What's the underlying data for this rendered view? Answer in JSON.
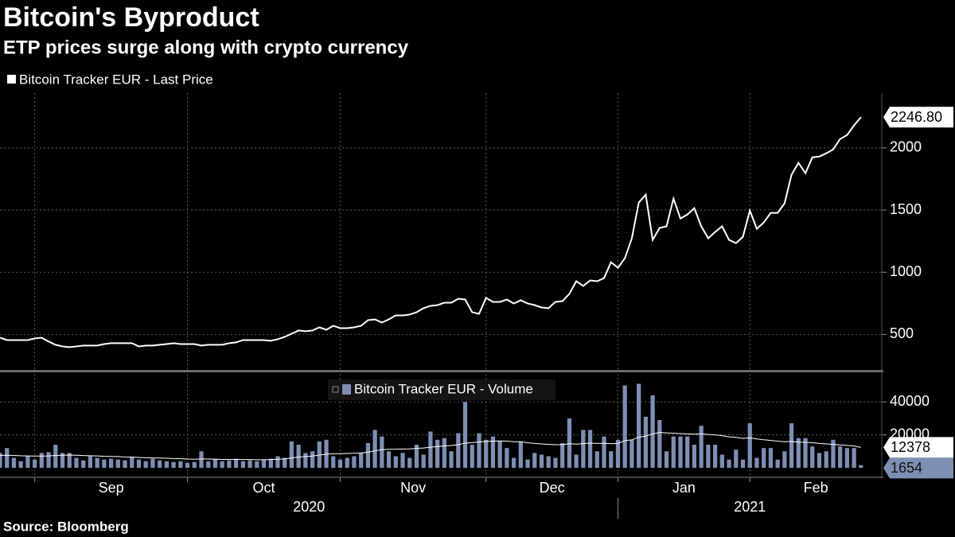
{
  "source": "Source: Bloomberg",
  "chart_data": [
    {
      "type": "line",
      "title": "Bitcoin's Byproduct",
      "subtitle": "ETP prices surge along with crypto currency",
      "series": [
        {
          "name": "Bitcoin Tracker EUR - Last Price",
          "color": "#ffffff",
          "values": [
            474,
            455,
            455,
            455,
            455,
            468,
            474,
            443,
            417,
            404,
            398,
            404,
            411,
            411,
            411,
            423,
            430,
            430,
            430,
            430,
            404,
            411,
            411,
            417,
            423,
            430,
            423,
            423,
            423,
            411,
            417,
            417,
            417,
            430,
            436,
            455,
            455,
            455,
            455,
            449,
            462,
            481,
            506,
            532,
            526,
            532,
            557,
            538,
            570,
            551,
            551,
            557,
            570,
            615,
            621,
            596,
            621,
            653,
            653,
            660,
            679,
            711,
            730,
            736,
            755,
            755,
            787,
            781,
            679,
            666,
            794,
            762,
            762,
            781,
            749,
            775,
            749,
            736,
            717,
            711,
            762,
            768,
            826,
            928,
            890,
            934,
            928,
            953,
            1081,
            1036,
            1113,
            1273,
            1560,
            1624,
            1260,
            1356,
            1369,
            1592,
            1432,
            1464,
            1515,
            1369,
            1273,
            1324,
            1369,
            1260,
            1234,
            1285,
            1496,
            1349,
            1400,
            1477,
            1477,
            1554,
            1784,
            1879,
            1796,
            1924,
            1930,
            1956,
            1988,
            2071,
            2103,
            2180,
            2246.8
          ],
          "last_label": "2246.80"
        }
      ],
      "ylim": [
        215,
        2440
      ],
      "yticks": [
        500,
        1000,
        1500,
        2000
      ],
      "grid": true
    },
    {
      "type": "bar",
      "series": [
        {
          "name": "Bitcoin Tracker EUR - Volume",
          "type": "bar",
          "color": "#7d8fb3",
          "values": [
            9000,
            12000,
            6000,
            4000,
            7000,
            5000,
            9000,
            9500,
            14000,
            9000,
            9000,
            6000,
            4500,
            7000,
            6000,
            5000,
            5500,
            5000,
            4500,
            6500,
            5000,
            4000,
            5500,
            4500,
            4000,
            3500,
            4000,
            3000,
            3500,
            10000,
            4000,
            5500,
            4000,
            4500,
            5500,
            4000,
            4500,
            4000,
            5000,
            5500,
            7000,
            6000,
            16000,
            14000,
            9000,
            10000,
            16000,
            17000,
            7000,
            5000,
            6000,
            7000,
            9000,
            15000,
            23000,
            19000,
            10000,
            7000,
            9000,
            6000,
            14000,
            8000,
            22000,
            17000,
            18000,
            10000,
            21000,
            40000,
            14000,
            21000,
            17000,
            19000,
            16000,
            12000,
            6000,
            16000,
            5000,
            9000,
            8000,
            7000,
            6000,
            15000,
            30000,
            8000,
            23000,
            23000,
            10000,
            19000,
            10000,
            17000,
            50000,
            17000,
            51000,
            31000,
            44000,
            29000,
            10000,
            19000,
            19000,
            19000,
            14000,
            25500,
            14000,
            14000,
            8000,
            5000,
            11000,
            5000,
            27000,
            6000,
            12000,
            12000,
            5000,
            10000,
            27000,
            18000,
            18000,
            13000,
            9000,
            10000,
            17000,
            13000,
            12000,
            12000,
            1654
          ]
        },
        {
          "type": "line",
          "color": "#ffffff",
          "values": [
            7500,
            7600,
            7500,
            7300,
            7200,
            7100,
            7100,
            7200,
            7500,
            7600,
            7700,
            7600,
            7400,
            7300,
            7200,
            7000,
            6900,
            6800,
            6600,
            6500,
            6300,
            6100,
            6000,
            5900,
            5800,
            5600,
            5500,
            5300,
            5200,
            5400,
            5300,
            5200,
            5100,
            5100,
            5100,
            5000,
            5000,
            4900,
            4900,
            5000,
            5200,
            5400,
            6000,
            6500,
            6800,
            7100,
            7700,
            8300,
            8500,
            8600,
            8700,
            8800,
            9000,
            9500,
            10300,
            11000,
            11200,
            11300,
            11400,
            11500,
            11800,
            12000,
            12500,
            12900,
            13300,
            13500,
            14000,
            15000,
            15300,
            15700,
            16000,
            16200,
            16300,
            16200,
            15800,
            15800,
            15200,
            14800,
            14500,
            14200,
            14000,
            14000,
            14600,
            14400,
            14700,
            15000,
            14800,
            14900,
            14600,
            14800,
            16500,
            17000,
            18500,
            19300,
            20500,
            21500,
            21200,
            21000,
            20800,
            20600,
            20400,
            20600,
            20200,
            20000,
            19500,
            18800,
            18500,
            17800,
            18200,
            17500,
            17000,
            16600,
            16200,
            15800,
            16000,
            15600,
            15500,
            15200,
            14800,
            14500,
            14200,
            13900,
            13600,
            13200,
            12378
          ]
        }
      ],
      "ylim": [
        0,
        57000
      ],
      "yticks": [
        20000,
        40000
      ],
      "xlim": [
        0,
        127
      ],
      "xticks": [
        {
          "value": 5,
          "label": "Sep"
        },
        {
          "value": 27,
          "label": "Oct"
        },
        {
          "value": 49,
          "label": "Nov"
        },
        {
          "value": 70,
          "label": "Dec"
        },
        {
          "value": 89,
          "label": "Jan"
        },
        {
          "value": 108,
          "label": "Feb"
        }
      ],
      "year_ticks": [
        {
          "value": 0,
          "label": "2020"
        },
        {
          "value": 89,
          "label": "2021"
        }
      ],
      "grid": true
    }
  ]
}
